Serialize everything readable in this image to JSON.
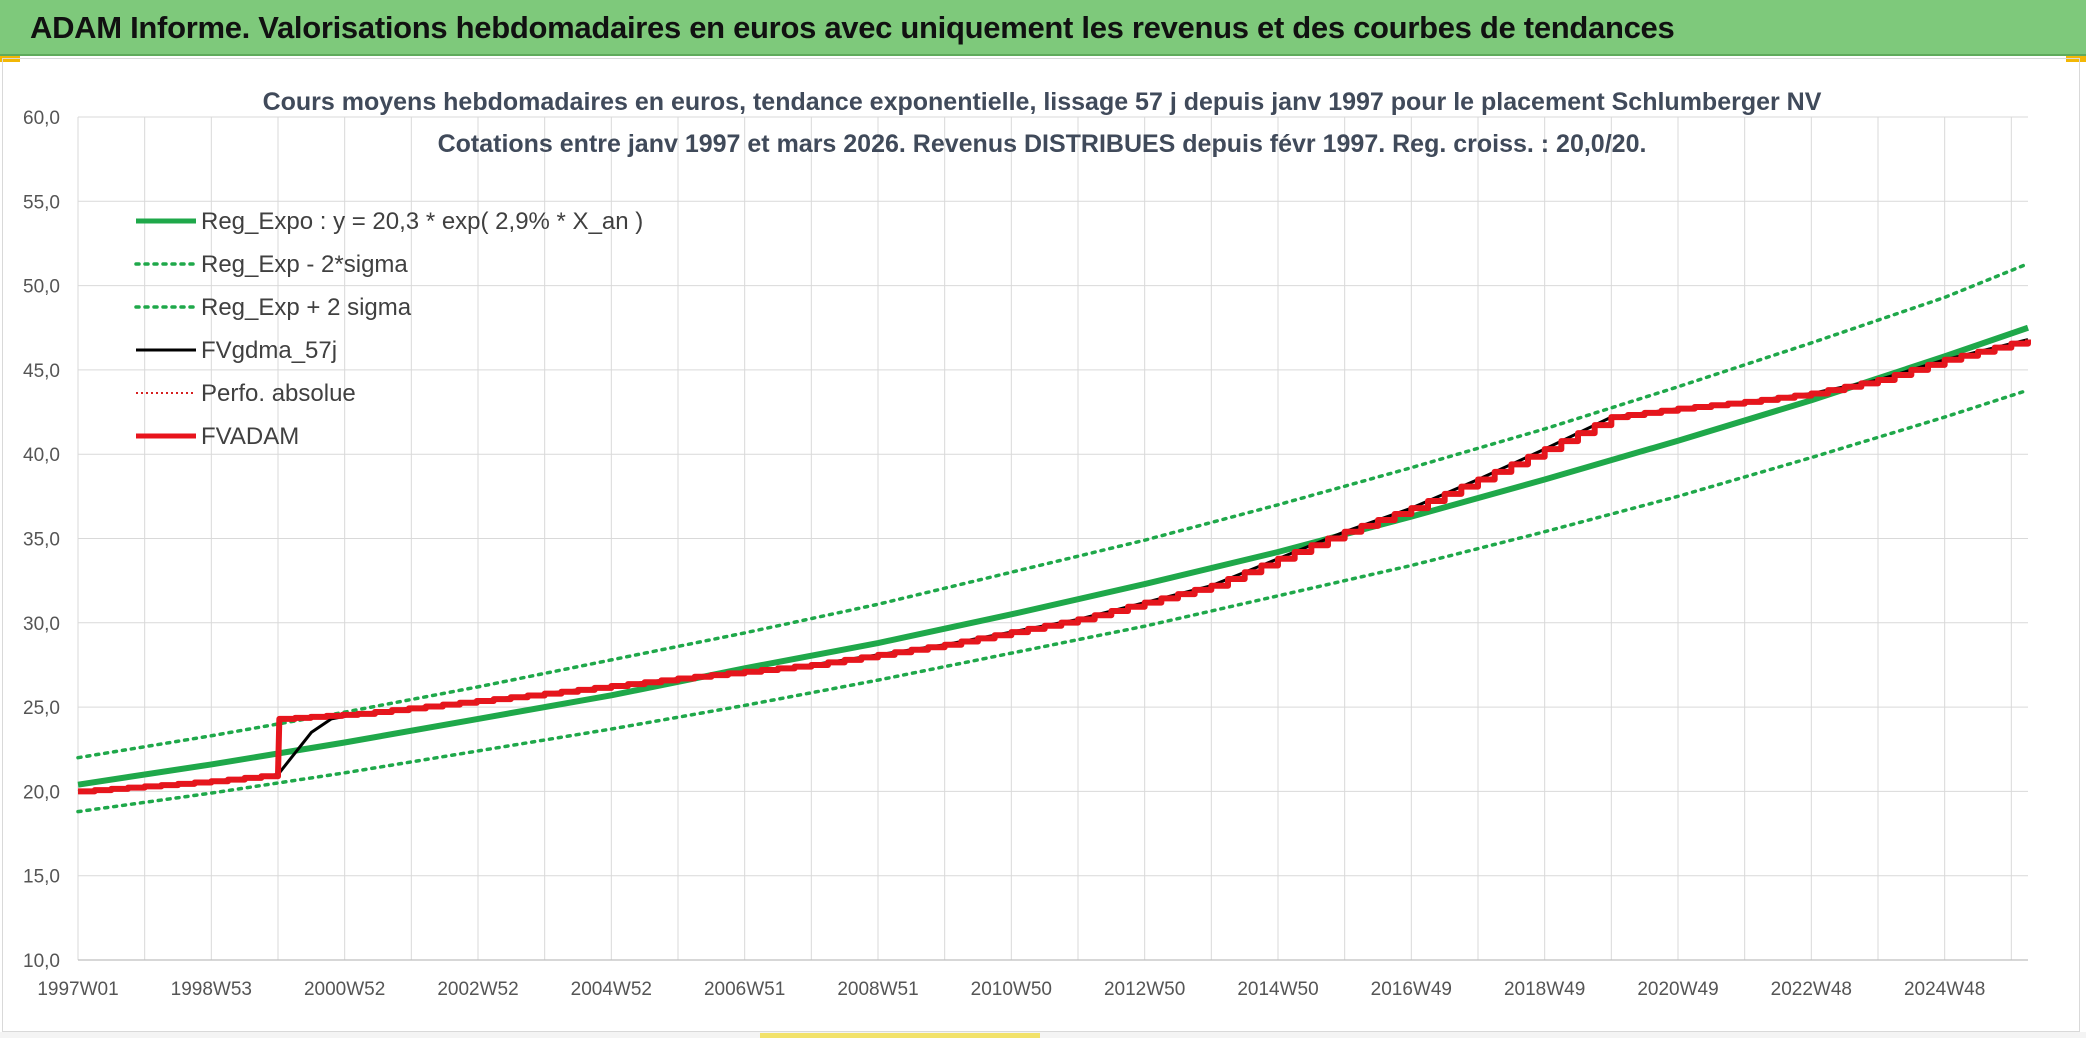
{
  "header": {
    "title": "ADAM Informe. Valorisations hebdomadaires en euros avec uniquement les revenus et des courbes de tendances"
  },
  "colors": {
    "banner": "#7ec97b",
    "reg_expo": "#1fa84a",
    "band": "#1fa84a",
    "fvgdma": "#000000",
    "perfo": "#d62020",
    "fvadam": "#e8141c",
    "grid": "#d9d9d9",
    "title_text": "#404a5a"
  },
  "chart_data": {
    "type": "line",
    "title": "Cours moyens hebdomadaires en euros, tendance exponentielle, lissage 57 j depuis janv 1997 pour le placement Schlumberger NV",
    "subtitle": "Cotations entre janv 1997 et mars 2026. Revenus DISTRIBUES depuis févr 1997. Reg. croiss. : 20,0/20.",
    "xlabel": "",
    "ylabel": "",
    "x_range": [
      1997.0,
      2026.25
    ],
    "ylim": [
      10,
      60
    ],
    "yticks": [
      "10,0",
      "15,0",
      "20,0",
      "25,0",
      "30,0",
      "35,0",
      "40,0",
      "45,0",
      "50,0",
      "55,0",
      "60,0"
    ],
    "xticks": [
      {
        "label": "1997W01",
        "x": 1997.0
      },
      {
        "label": "1998W53",
        "x": 1999.0
      },
      {
        "label": "2000W52",
        "x": 2001.0
      },
      {
        "label": "2002W52",
        "x": 2003.0
      },
      {
        "label": "2004W52",
        "x": 2005.0
      },
      {
        "label": "2006W51",
        "x": 2007.0
      },
      {
        "label": "2008W51",
        "x": 2009.0
      },
      {
        "label": "2010W50",
        "x": 2011.0
      },
      {
        "label": "2012W50",
        "x": 2013.0
      },
      {
        "label": "2014W50",
        "x": 2015.0
      },
      {
        "label": "2016W49",
        "x": 2017.0
      },
      {
        "label": "2018W49",
        "x": 2019.0
      },
      {
        "label": "2020W49",
        "x": 2021.0
      },
      {
        "label": "2022W48",
        "x": 2023.0
      },
      {
        "label": "2024W48",
        "x": 2025.0
      }
    ],
    "minor_x_gridlines_every_years": 1,
    "legend_position": "top-left",
    "legend": [
      "Reg_Expo : y = 20,3 * exp( 2,9% *  X_an )",
      "Reg_Exp - 2*sigma",
      "Reg_Exp + 2 sigma",
      "FVgdma_57j",
      "Perfo. absolue",
      "FVADAM"
    ],
    "series": [
      {
        "name": "Reg_Expo : y = 20,3 * exp( 2,9% *  X_an )",
        "style": "solid-thick",
        "x": [
          1997,
          1999,
          2001,
          2003,
          2005,
          2007,
          2009,
          2011,
          2013,
          2015,
          2017,
          2019,
          2021,
          2023,
          2025,
          2026.25
        ],
        "values": [
          20.4,
          21.6,
          22.9,
          24.3,
          25.7,
          27.3,
          28.8,
          30.5,
          32.3,
          34.2,
          36.3,
          38.5,
          40.8,
          43.2,
          45.8,
          47.5
        ]
      },
      {
        "name": "Reg_Exp - 2*sigma",
        "style": "dotted",
        "x": [
          1997,
          1999,
          2001,
          2003,
          2005,
          2007,
          2009,
          2011,
          2013,
          2015,
          2017,
          2019,
          2021,
          2023,
          2025,
          2026.25
        ],
        "values": [
          18.8,
          19.9,
          21.1,
          22.4,
          23.7,
          25.1,
          26.6,
          28.2,
          29.8,
          31.6,
          33.4,
          35.4,
          37.5,
          39.8,
          42.2,
          43.8
        ]
      },
      {
        "name": "Reg_Exp + 2 sigma",
        "style": "dotted",
        "x": [
          1997,
          1999,
          2001,
          2003,
          2005,
          2007,
          2009,
          2011,
          2013,
          2015,
          2017,
          2019,
          2021,
          2023,
          2025,
          2026.25
        ],
        "values": [
          22.0,
          23.3,
          24.7,
          26.2,
          27.8,
          29.4,
          31.1,
          33.0,
          34.9,
          37.0,
          39.2,
          41.5,
          44.0,
          46.6,
          49.3,
          51.3
        ]
      },
      {
        "name": "FVgdma_57j",
        "style": "solid-thin",
        "x": [
          1997.0,
          1999.0,
          2000.0,
          2000.2,
          2000.5,
          2000.8,
          2001.2,
          2004.0,
          2006.0,
          2008.0,
          2010.0,
          2012.0,
          2014.0,
          2016.0,
          2017.0,
          2018.0,
          2019.0,
          2020.0,
          2021.0,
          2022.0,
          2023.0,
          2024.0,
          2025.0,
          2026.25
        ],
        "values": [
          20.0,
          20.6,
          21.0,
          22.0,
          23.5,
          24.3,
          24.6,
          25.8,
          26.7,
          27.5,
          28.7,
          30.2,
          32.2,
          35.4,
          36.8,
          38.5,
          40.3,
          42.2,
          42.7,
          43.1,
          43.6,
          44.4,
          45.6,
          46.8
        ]
      },
      {
        "name": "Perfo. absolue",
        "style": "dotted-thin",
        "x": [
          1997.0,
          1999.0,
          2000.0,
          2000.02,
          2001.2,
          2004.0,
          2006.0,
          2008.0,
          2010.0,
          2012.0,
          2014.0,
          2016.0,
          2017.0,
          2018.0,
          2019.0,
          2020.0,
          2021.0,
          2022.0,
          2023.0,
          2024.0,
          2025.0,
          2026.25
        ],
        "values": [
          20.0,
          20.6,
          21.0,
          24.3,
          24.6,
          25.8,
          26.7,
          27.5,
          28.7,
          30.2,
          32.2,
          35.4,
          36.8,
          38.5,
          40.3,
          42.2,
          42.7,
          43.1,
          43.6,
          44.4,
          45.6,
          46.8
        ]
      },
      {
        "name": "FVADAM",
        "style": "solid-thick",
        "x": [
          1997.0,
          1999.0,
          2000.0,
          2000.02,
          2001.2,
          2004.0,
          2006.0,
          2008.0,
          2010.0,
          2012.0,
          2014.0,
          2016.0,
          2017.0,
          2018.0,
          2019.0,
          2020.0,
          2021.0,
          2022.0,
          2023.0,
          2024.0,
          2025.0,
          2026.25
        ],
        "values": [
          20.0,
          20.6,
          21.0,
          24.3,
          24.6,
          25.8,
          26.7,
          27.5,
          28.7,
          30.2,
          32.2,
          35.4,
          36.8,
          38.5,
          40.3,
          42.2,
          42.7,
          43.1,
          43.6,
          44.4,
          45.6,
          46.8
        ]
      }
    ]
  }
}
